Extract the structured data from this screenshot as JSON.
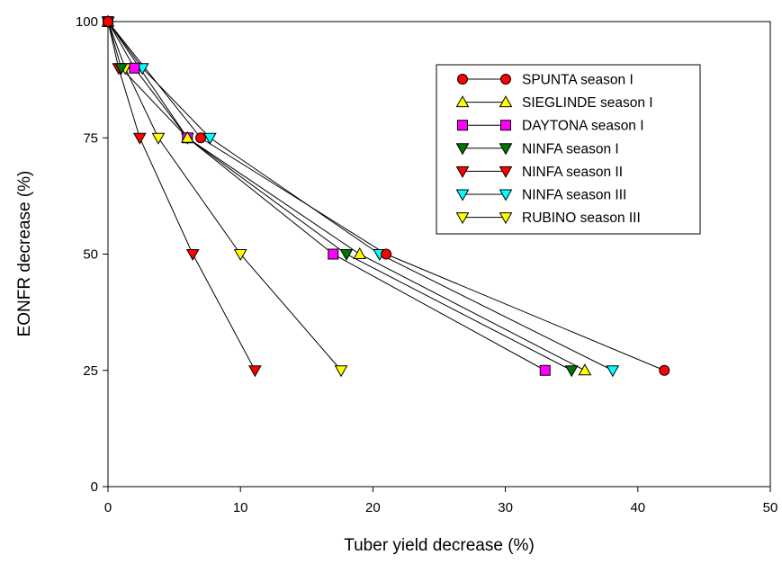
{
  "chart_data": {
    "type": "scatter",
    "xlabel": "Tuber yield decrease (%)",
    "ylabel": "EONFR  decrease (%)",
    "xlim": [
      0,
      50
    ],
    "ylim": [
      0,
      100
    ],
    "xticks": [
      0,
      10,
      20,
      30,
      40,
      50
    ],
    "yticks": [
      0,
      25,
      50,
      75,
      100
    ],
    "grid": false,
    "legend_position": "top-right",
    "series": [
      {
        "name": "SPUNTA season I",
        "marker": "circle",
        "color": "#ff0000",
        "x": [
          0,
          7,
          21,
          42
        ],
        "y": [
          100,
          75,
          50,
          25
        ]
      },
      {
        "name": "SIEGLINDE season I",
        "marker": "triangle-up",
        "color": "#ffff00",
        "x": [
          0,
          6,
          19,
          36
        ],
        "y": [
          100,
          75,
          50,
          25
        ]
      },
      {
        "name": "DAYTONA season I",
        "marker": "square",
        "color": "#ff00ff",
        "x": [
          0,
          2,
          6,
          17,
          33
        ],
        "y": [
          100,
          90,
          75,
          50,
          25
        ]
      },
      {
        "name": "NINFA season I",
        "marker": "triangle-down",
        "color": "#007700",
        "x": [
          0,
          1,
          6,
          18,
          35
        ],
        "y": [
          100,
          90,
          75,
          50,
          25
        ]
      },
      {
        "name": "NINFA season II",
        "marker": "triangle-down",
        "color": "#ff0000",
        "x": [
          0,
          0.8,
          2.4,
          6.4,
          11.1
        ],
        "y": [
          100,
          90,
          75,
          50,
          25
        ]
      },
      {
        "name": "NINFA season III",
        "marker": "triangle-down",
        "color": "#00ffff",
        "x": [
          0,
          2.6,
          7.7,
          20.5,
          38.1
        ],
        "y": [
          100,
          90,
          75,
          50,
          25
        ]
      },
      {
        "name": "RUBINO season III",
        "marker": "triangle-down",
        "color": "#ffff00",
        "x": [
          0,
          1.3,
          3.8,
          10,
          17.6
        ],
        "y": [
          100,
          90,
          75,
          50,
          25
        ]
      }
    ]
  }
}
